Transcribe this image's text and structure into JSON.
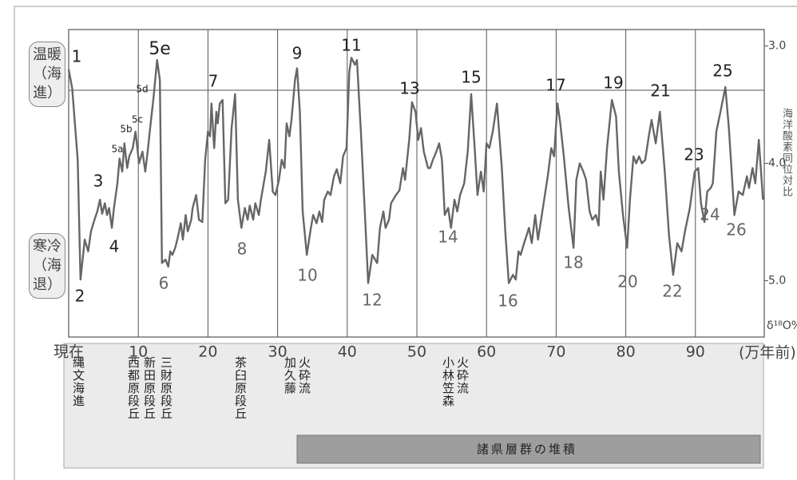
{
  "chart_data": {
    "type": "line",
    "y_axis_label": "海洋酸素同位対比",
    "y_unit_label": "δ¹⁸O‰",
    "x_axis_label": "(万年前)",
    "warm_label": "温暖（海進）",
    "cold_label": "寒冷（海退）",
    "color": "#666666",
    "xlim": [
      0,
      100
    ],
    "ylim": [
      5.48,
      2.86
    ],
    "xticks": [
      {
        "value": 0,
        "label": "現在"
      },
      10,
      20,
      30,
      40,
      50,
      60,
      70,
      80,
      90
    ],
    "yticks": [
      {
        "value": 3,
        "label": "3.0"
      },
      {
        "value": 4,
        "label": "4.0"
      },
      {
        "value": 5,
        "label": "5.0"
      }
    ],
    "grid": true,
    "x": [
      0,
      0.5,
      1.3,
      1.7,
      2.3,
      2.8,
      3.2,
      3.7,
      4.1,
      4.5,
      4.8,
      5.2,
      5.5,
      5.8,
      6.2,
      6.5,
      7.0,
      7.3,
      7.7,
      8.0,
      8.4,
      8.7,
      9.2,
      9.6,
      10.1,
      10.6,
      11.0,
      11.4,
      11.7,
      12.2,
      12.7,
      13.1,
      13.4,
      13.9,
      14.3,
      14.6,
      14.9,
      15.3,
      15.6,
      16.1,
      16.4,
      16.8,
      17.1,
      17.6,
      17.8,
      18.3,
      18.7,
      19.2,
      19.6,
      20.0,
      20.3,
      20.5,
      20.9,
      21.2,
      21.4,
      21.7,
      22.1,
      22.5,
      22.9,
      23.4,
      23.9,
      24.3,
      24.8,
      25.3,
      25.7,
      26.0,
      26.5,
      26.8,
      27.3,
      27.6,
      28.3,
      28.8,
      29.3,
      29.7,
      30.2,
      30.6,
      31.0,
      31.3,
      31.7,
      32.0,
      32.5,
      32.8,
      33.2,
      33.6,
      34.2,
      34.7,
      35.1,
      35.6,
      36.0,
      36.4,
      36.7,
      37.2,
      37.6,
      38.1,
      38.5,
      39.0,
      39.4,
      39.9,
      40.3,
      40.6,
      41.1,
      41.4,
      42.0,
      42.6,
      43.0,
      43.6,
      44.3,
      44.7,
      45.2,
      45.5,
      46.0,
      46.3,
      47.0,
      47.5,
      48.0,
      48.3,
      48.9,
      49.3,
      49.8,
      50.2,
      50.6,
      51.0,
      51.6,
      51.9,
      52.3,
      52.8,
      53.2,
      53.6,
      54.0,
      54.5,
      54.9,
      55.4,
      55.8,
      56.2,
      56.8,
      57.3,
      57.8,
      58.3,
      58.7,
      59.2,
      59.6,
      60.0,
      60.4,
      60.9,
      61.5,
      62.2,
      62.7,
      63.2,
      63.8,
      64.2,
      64.6,
      64.9,
      65.4,
      66.1,
      66.5,
      67.0,
      67.4,
      68.1,
      68.8,
      69.3,
      69.7,
      70.2,
      70.6,
      71.1,
      71.8,
      72.5,
      72.9,
      73.4,
      73.9,
      74.3,
      74.8,
      75.2,
      75.7,
      76.1,
      76.4,
      76.8,
      77.3,
      78.0,
      78.6,
      79.0,
      79.6,
      80.2,
      80.6,
      81.1,
      81.5,
      81.9,
      82.3,
      82.8,
      83.3,
      83.7,
      84.3,
      84.9,
      85.6,
      86.2,
      86.8,
      87.4,
      88.0,
      88.5,
      89.2,
      89.9,
      90.4,
      90.8,
      91.3,
      91.7,
      92.2,
      92.5,
      93.0,
      93.6,
      94.3,
      94.8,
      95.6,
      96.2,
      96.8,
      97.4,
      97.7,
      98.2,
      98.6,
      99.1,
      99.7
    ],
    "values": [
      3.2,
      3.36,
      3.97,
      4.99,
      4.65,
      4.75,
      4.58,
      4.48,
      4.41,
      4.31,
      4.43,
      4.34,
      4.44,
      4.38,
      4.55,
      4.38,
      4.17,
      3.96,
      4.07,
      3.83,
      4.04,
      3.94,
      3.87,
      3.73,
      4.0,
      3.9,
      4.07,
      3.87,
      3.7,
      3.43,
      3.12,
      3.29,
      4.85,
      4.82,
      4.88,
      4.75,
      4.78,
      4.72,
      4.65,
      4.51,
      4.65,
      4.44,
      4.58,
      4.48,
      4.38,
      4.27,
      4.48,
      4.5,
      3.97,
      3.73,
      3.77,
      3.49,
      3.87,
      3.56,
      3.66,
      3.49,
      3.46,
      4.34,
      4.31,
      3.7,
      3.41,
      4.31,
      4.55,
      4.38,
      4.48,
      4.36,
      4.48,
      4.34,
      4.44,
      4.31,
      4.07,
      3.8,
      4.24,
      4.27,
      4.14,
      3.97,
      4.04,
      3.66,
      3.77,
      3.63,
      3.29,
      3.19,
      3.56,
      4.41,
      4.78,
      4.58,
      4.44,
      4.51,
      4.41,
      4.5,
      4.31,
      4.24,
      4.27,
      4.11,
      4.05,
      4.17,
      3.94,
      3.87,
      3.22,
      3.1,
      3.16,
      3.12,
      3.77,
      4.51,
      5.02,
      4.78,
      4.85,
      4.55,
      4.41,
      4.55,
      4.48,
      4.34,
      4.27,
      4.23,
      4.04,
      4.14,
      3.8,
      3.48,
      3.56,
      3.8,
      3.7,
      3.9,
      4.04,
      4.04,
      3.97,
      3.9,
      3.83,
      3.97,
      4.44,
      4.38,
      4.55,
      4.31,
      4.41,
      4.27,
      4.17,
      3.9,
      3.41,
      3.87,
      4.27,
      4.07,
      4.24,
      3.83,
      3.87,
      3.73,
      3.49,
      4.04,
      4.58,
      5.02,
      4.95,
      4.99,
      4.75,
      4.78,
      4.68,
      4.55,
      4.68,
      4.44,
      4.65,
      4.38,
      4.11,
      3.87,
      3.94,
      3.49,
      3.66,
      3.94,
      4.38,
      4.72,
      4.14,
      4.0,
      4.07,
      4.14,
      4.41,
      4.48,
      4.44,
      4.53,
      4.07,
      4.31,
      3.87,
      3.46,
      3.6,
      4.07,
      4.44,
      4.72,
      4.31,
      3.94,
      4.0,
      3.94,
      4.0,
      3.97,
      3.77,
      3.63,
      3.83,
      3.56,
      4.07,
      4.61,
      4.95,
      4.68,
      4.75,
      4.58,
      4.38,
      4.07,
      4.04,
      4.34,
      4.5,
      4.24,
      4.21,
      4.17,
      3.73,
      3.56,
      3.35,
      3.7,
      4.44,
      4.24,
      4.27,
      4.11,
      4.21,
      4.04,
      4.17,
      3.8,
      4.31
    ],
    "annotations": [
      "1",
      "2",
      "3",
      "4",
      "5a",
      "5b",
      "5c",
      "5d",
      "5e",
      "6",
      "7",
      "8",
      "9",
      "10",
      "11",
      "12",
      "13",
      "14",
      "15",
      "16",
      "17",
      "18",
      "19",
      "20",
      "21",
      "22",
      "23",
      "24",
      "25",
      "26"
    ],
    "events": [
      "縄文海進",
      "西都原段丘",
      "新田原段丘",
      "三財原段丘",
      "茶臼原段丘",
      "加久藤",
      "火砕流",
      "小林笠森",
      "火砕流"
    ],
    "deposit_label": "諸県層群の堆積"
  }
}
